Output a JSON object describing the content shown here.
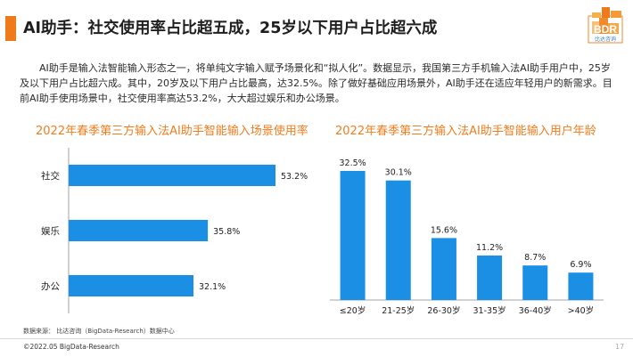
{
  "header": {
    "title": "AI助手：社交使用率占比超五成，25岁以下用户占比超六成",
    "logo_text": "BDR",
    "logo_subtext": "比达咨询"
  },
  "intro": "AI助手是输入法智能输入形态之一，将单纯文字输入赋予场景化和“拟人化”。数据显示，我国第三方手机输入法AI助手用户中，25岁及以下用户占比超六成。其中，20岁及以下用户占比最高，达32.5%。除了做好基础应用场景外，AI助手还在适应年轻用户的新需求。目前AI助手使用场景中，社交使用率高达53.2%，大大超过娱乐和办公场景。",
  "colors": {
    "accent": "#ee7a1c",
    "bar": "#1a8fe3",
    "chart_title": "#f07d1e"
  },
  "chart_data": [
    {
      "type": "bar",
      "orientation": "horizontal",
      "title": "2022年春季第三方输入法AI助手智能输入场景使用率",
      "categories": [
        "社交",
        "娱乐",
        "办公"
      ],
      "values": [
        53.2,
        35.8,
        32.1
      ],
      "value_labels": [
        "53.2%",
        "35.8%",
        "32.1%"
      ],
      "unit": "%",
      "xlim": [
        0,
        60
      ],
      "grid": false
    },
    {
      "type": "bar",
      "orientation": "vertical",
      "title": "2022年春季第三方输入法AI助手智能输入用户年龄",
      "categories": [
        "≤20岁",
        "21-25岁",
        "26-30岁",
        "31-35岁",
        "36-40岁",
        ">40岁"
      ],
      "values": [
        32.5,
        30.1,
        15.6,
        11.2,
        8.7,
        6.9
      ],
      "value_labels": [
        "32.5%",
        "30.1%",
        "15.6%",
        "11.2%",
        "8.7%",
        "6.9%"
      ],
      "unit": "%",
      "ylim": [
        0,
        35
      ],
      "grid": false
    }
  ],
  "footer": {
    "source": "数据来源： 比达咨询（BigData-Research）数据中心",
    "copyright": "©2022.05 BigData-Research",
    "page_number": "17"
  }
}
